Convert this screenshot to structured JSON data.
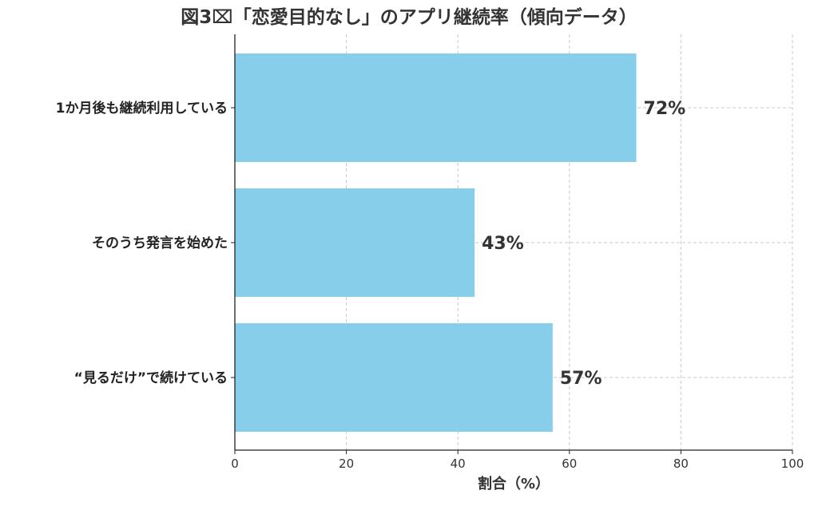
{
  "chart_data": {
    "type": "bar",
    "orientation": "horizontal",
    "title": "図3⌧「恋愛目的なし」のアプリ継続率（傾向データ）",
    "categories": [
      "1か月後も継続利用している",
      "そのうち発言を始めた",
      "“見るだけ”で続けている"
    ],
    "values": [
      72,
      43,
      57
    ],
    "value_labels": [
      "72%",
      "43%",
      "57%"
    ],
    "xlabel": "割合（%）",
    "ylabel": "",
    "xlim": [
      0,
      100
    ],
    "xticks": [
      0,
      20,
      40,
      60,
      80,
      100
    ],
    "grid": true,
    "bar_color": "#87ceeb"
  }
}
